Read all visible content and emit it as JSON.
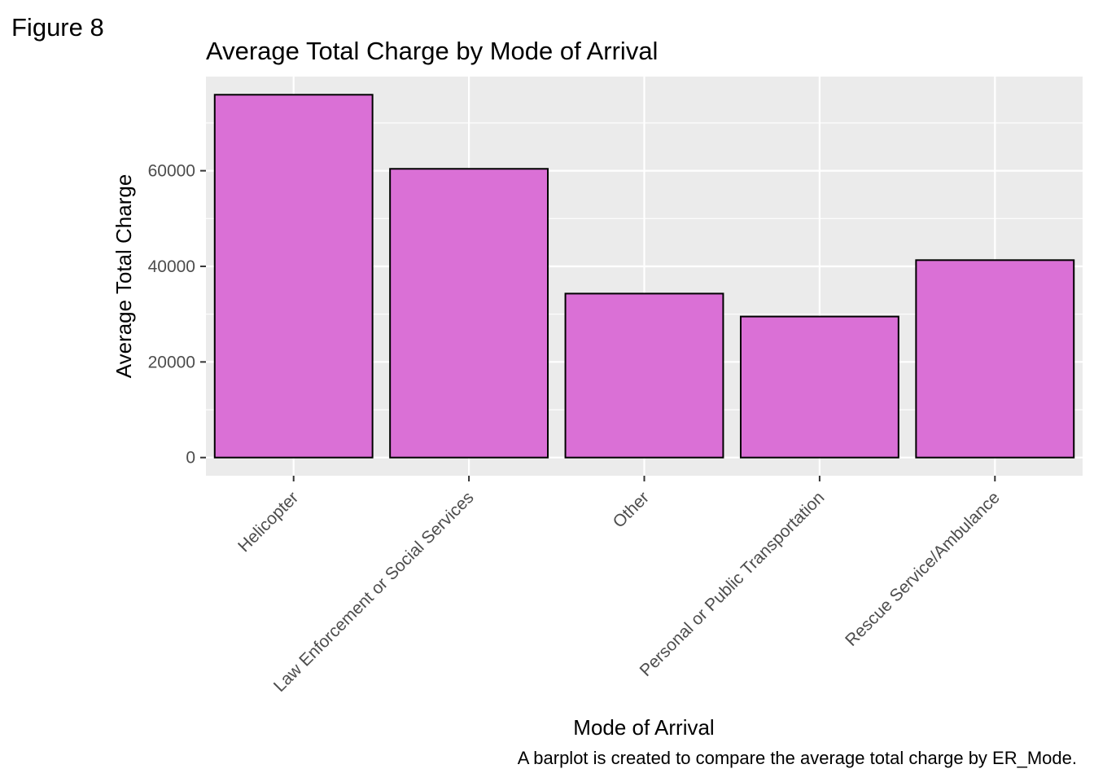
{
  "figure_label": "Figure 8",
  "caption": "A barplot is created to compare the average total charge by ER_Mode.",
  "colors": {
    "bar_fill": "#DA70D6",
    "bar_stroke": "#000000",
    "panel_background": "#EBEBEB",
    "grid": "#FFFFFF",
    "tick_text": "#4D4D4D"
  },
  "chart_data": {
    "type": "bar",
    "title": "Average Total Charge by Mode of Arrival",
    "xlabel": "Mode of Arrival",
    "ylabel": "Average Total Charge",
    "categories": [
      "Helicopter",
      "Law Enforcement or Social Services",
      "Other",
      "Personal or Public Transportation",
      "Rescue Service/Ambulance"
    ],
    "values": [
      75900,
      60400,
      34300,
      29500,
      41300
    ],
    "yticks": [
      0,
      20000,
      40000,
      60000
    ],
    "ytick_labels": [
      "0",
      "20000",
      "40000",
      "60000"
    ],
    "ylim": [
      -3800,
      79700
    ],
    "grid": true,
    "legend": "none"
  }
}
